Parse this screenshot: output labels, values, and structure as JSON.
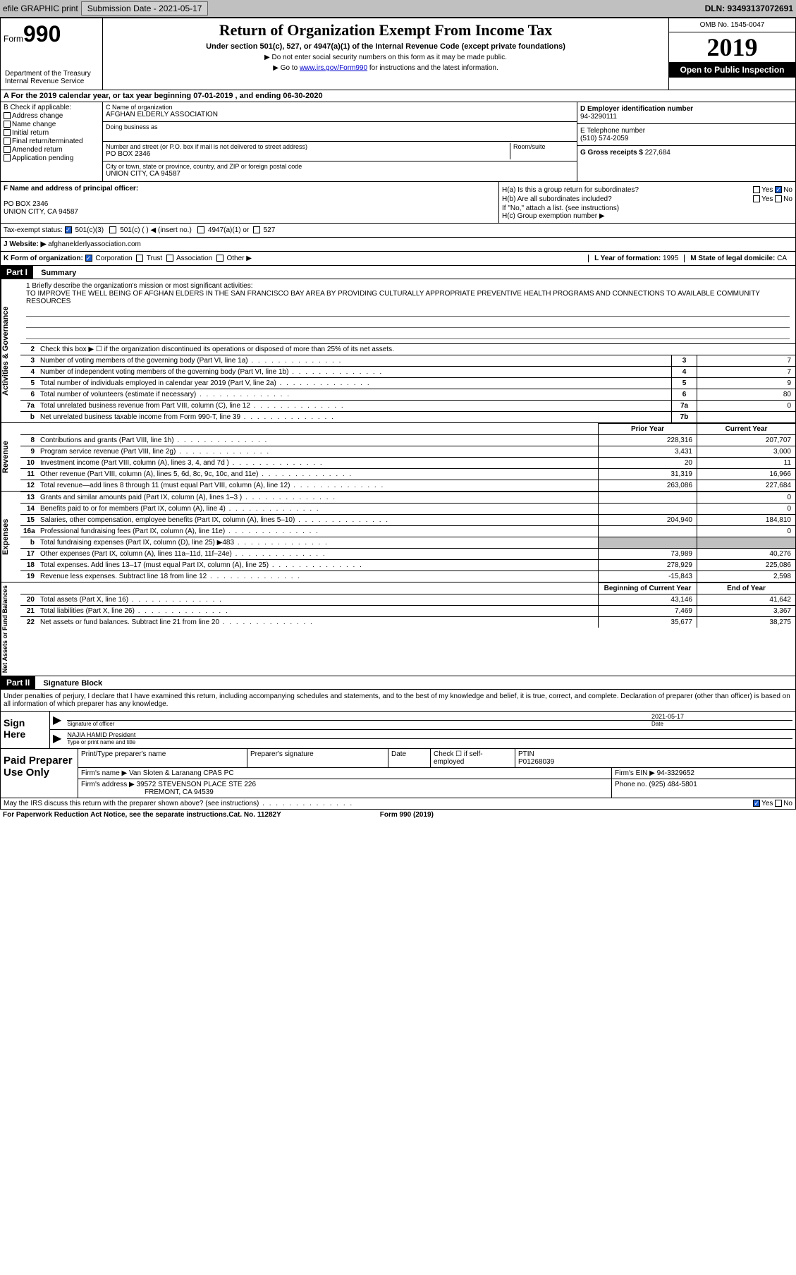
{
  "topbar": {
    "efile": "efile GRAPHIC print",
    "sub_label": "Submission Date - 2021-05-17",
    "dln": "DLN: 93493137072691"
  },
  "header": {
    "form_word": "Form",
    "form_num": "990",
    "dept": "Department of the Treasury\nInternal Revenue Service",
    "title": "Return of Organization Exempt From Income Tax",
    "subtitle": "Under section 501(c), 527, or 4947(a)(1) of the Internal Revenue Code (except private foundations)",
    "note1": "▶ Do not enter social security numbers on this form as it may be made public.",
    "note2_pre": "▶ Go to ",
    "note2_link": "www.irs.gov/Form990",
    "note2_post": " for instructions and the latest information.",
    "omb": "OMB No. 1545-0047",
    "year": "2019",
    "open": "Open to Public Inspection"
  },
  "period": "A For the 2019 calendar year, or tax year beginning 07-01-2019    , and ending 06-30-2020",
  "section_b": {
    "label": "B Check if applicable:",
    "items": [
      "Address change",
      "Name change",
      "Initial return",
      "Final return/terminated",
      "Amended return",
      "Application pending"
    ]
  },
  "section_c": {
    "name_label": "C Name of organization",
    "name": "AFGHAN ELDERLY ASSOCIATION",
    "dba_label": "Doing business as",
    "addr_label": "Number and street (or P.O. box if mail is not delivered to street address)",
    "room_label": "Room/suite",
    "addr": "PO BOX 2346",
    "city_label": "City or town, state or province, country, and ZIP or foreign postal code",
    "city": "UNION CITY, CA  94587"
  },
  "section_d": {
    "ein_label": "D Employer identification number",
    "ein": "94-3290111",
    "phone_label": "E Telephone number",
    "phone": "(510) 574-2059",
    "gross_label": "G Gross receipts $ ",
    "gross": "227,684"
  },
  "section_f": {
    "label": "F  Name and address of principal officer:",
    "line1": "PO BOX 2346",
    "line2": "UNION CITY, CA  94587"
  },
  "section_h": {
    "ha": "H(a)  Is this a group return for subordinates?",
    "hb": "H(b)  Are all subordinates included?",
    "hb_note": "If \"No,\" attach a list. (see instructions)",
    "hc": "H(c)  Group exemption number ▶",
    "yes": "Yes",
    "no": "No"
  },
  "tax_exempt": {
    "label": "Tax-exempt status:",
    "opts": [
      "501(c)(3)",
      "501(c) (   ) ◀ (insert no.)",
      "4947(a)(1) or",
      "527"
    ]
  },
  "website": {
    "label": "J  Website: ▶",
    "value": "afghanelderlyassociation.com"
  },
  "section_k": {
    "label": "K Form of organization:",
    "opts": [
      "Corporation",
      "Trust",
      "Association",
      "Other ▶"
    ]
  },
  "section_l": {
    "label": "L Year of formation: ",
    "value": "1995"
  },
  "section_m": {
    "label": "M State of legal domicile: ",
    "value": "CA"
  },
  "parts": {
    "p1": "Part I",
    "p1_title": "Summary",
    "p2": "Part II",
    "p2_title": "Signature Block"
  },
  "mission": {
    "q": "1  Briefly describe the organization's mission or most significant activities:",
    "text": "TO IMPROVE THE WELL BEING OF AFGHAN ELDERS IN THE SAN FRANCISCO BAY AREA BY PROVIDING CULTURALLY APPROPRIATE PREVENTIVE HEALTH PROGRAMS AND CONNECTIONS TO AVAILABLE COMMUNITY RESOURCES"
  },
  "vert": {
    "gov": "Activities & Governance",
    "rev": "Revenue",
    "exp": "Expenses",
    "net": "Net Assets or Fund Balances"
  },
  "gov_rows": [
    {
      "n": "2",
      "label": "Check this box ▶ ☐  if the organization discontinued its operations or disposed of more than 25% of its net assets."
    },
    {
      "n": "3",
      "label": "Number of voting members of the governing body (Part VI, line 1a)",
      "box": "3",
      "val": "7"
    },
    {
      "n": "4",
      "label": "Number of independent voting members of the governing body (Part VI, line 1b)",
      "box": "4",
      "val": "7"
    },
    {
      "n": "5",
      "label": "Total number of individuals employed in calendar year 2019 (Part V, line 2a)",
      "box": "5",
      "val": "9"
    },
    {
      "n": "6",
      "label": "Total number of volunteers (estimate if necessary)",
      "box": "6",
      "val": "80"
    },
    {
      "n": "7a",
      "label": "Total unrelated business revenue from Part VIII, column (C), line 12",
      "box": "7a",
      "val": "0"
    },
    {
      "n": "b",
      "label": "Net unrelated business taxable income from Form 990-T, line 39",
      "box": "7b",
      "val": ""
    }
  ],
  "col_headers": {
    "prior": "Prior Year",
    "current": "Current Year"
  },
  "rev_rows": [
    {
      "n": "8",
      "label": "Contributions and grants (Part VIII, line 1h)",
      "prior": "228,316",
      "curr": "207,707"
    },
    {
      "n": "9",
      "label": "Program service revenue (Part VIII, line 2g)",
      "prior": "3,431",
      "curr": "3,000"
    },
    {
      "n": "10",
      "label": "Investment income (Part VIII, column (A), lines 3, 4, and 7d )",
      "prior": "20",
      "curr": "11"
    },
    {
      "n": "11",
      "label": "Other revenue (Part VIII, column (A), lines 5, 6d, 8c, 9c, 10c, and 11e)",
      "prior": "31,319",
      "curr": "16,966"
    },
    {
      "n": "12",
      "label": "Total revenue—add lines 8 through 11 (must equal Part VIII, column (A), line 12)",
      "prior": "263,086",
      "curr": "227,684"
    }
  ],
  "exp_rows": [
    {
      "n": "13",
      "label": "Grants and similar amounts paid (Part IX, column (A), lines 1–3 )",
      "prior": "",
      "curr": "0"
    },
    {
      "n": "14",
      "label": "Benefits paid to or for members (Part IX, column (A), line 4)",
      "prior": "",
      "curr": "0"
    },
    {
      "n": "15",
      "label": "Salaries, other compensation, employee benefits (Part IX, column (A), lines 5–10)",
      "prior": "204,940",
      "curr": "184,810"
    },
    {
      "n": "16a",
      "label": "Professional fundraising fees (Part IX, column (A), line 11e)",
      "prior": "",
      "curr": "0"
    },
    {
      "n": "b",
      "label": "Total fundraising expenses (Part IX, column (D), line 25) ▶483",
      "prior": "SHADED",
      "curr": "SHADED"
    },
    {
      "n": "17",
      "label": "Other expenses (Part IX, column (A), lines 11a–11d, 11f–24e)",
      "prior": "73,989",
      "curr": "40,276"
    },
    {
      "n": "18",
      "label": "Total expenses. Add lines 13–17 (must equal Part IX, column (A), line 25)",
      "prior": "278,929",
      "curr": "225,086"
    },
    {
      "n": "19",
      "label": "Revenue less expenses. Subtract line 18 from line 12",
      "prior": "-15,843",
      "curr": "2,598"
    }
  ],
  "net_headers": {
    "beg": "Beginning of Current Year",
    "end": "End of Year"
  },
  "net_rows": [
    {
      "n": "20",
      "label": "Total assets (Part X, line 16)",
      "prior": "43,146",
      "curr": "41,642"
    },
    {
      "n": "21",
      "label": "Total liabilities (Part X, line 26)",
      "prior": "7,469",
      "curr": "3,367"
    },
    {
      "n": "22",
      "label": "Net assets or fund balances. Subtract line 21 from line 20",
      "prior": "35,677",
      "curr": "38,275"
    }
  ],
  "sig": {
    "penalty": "Under penalties of perjury, I declare that I have examined this return, including accompanying schedules and statements, and to the best of my knowledge and belief, it is true, correct, and complete. Declaration of preparer (other than officer) is based on all information of which preparer has any knowledge.",
    "sign_here": "Sign Here",
    "sig_officer": "Signature of officer",
    "date_label": "Date",
    "date_val": "2021-05-17",
    "name": "NAJIA HAMID  President",
    "name_label": "Type or print name and title"
  },
  "prep": {
    "title": "Paid Preparer Use Only",
    "print_name": "Print/Type preparer's name",
    "prep_sig": "Preparer's signature",
    "date": "Date",
    "check_self": "Check ☐ if self-employed",
    "ptin_label": "PTIN",
    "ptin": "P01268039",
    "firm_name_label": "Firm's name     ▶",
    "firm_name": "Van Sloten & Laranang CPAS PC",
    "firm_ein_label": "Firm's EIN ▶",
    "firm_ein": "94-3329652",
    "firm_addr_label": "Firm's address ▶",
    "firm_addr1": "39572 STEVENSON PLACE STE 226",
    "firm_addr2": "FREMONT, CA  94539",
    "phone_label": "Phone no. ",
    "phone": "(925) 484-5801"
  },
  "discuss": {
    "q": "May the IRS discuss this return with the preparer shown above? (see instructions)",
    "yes": "Yes",
    "no": "No"
  },
  "footer": {
    "pra": "For Paperwork Reduction Act Notice, see the separate instructions.",
    "cat": "Cat. No. 11282Y",
    "form": "Form 990 (2019)"
  }
}
